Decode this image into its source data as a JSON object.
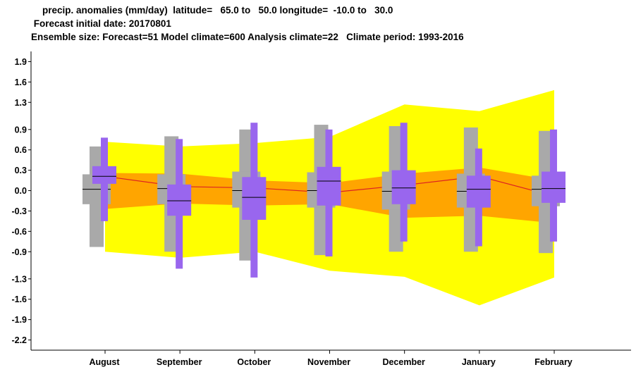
{
  "header": {
    "line1": "precip. anomalies (mm/day)  latitude=   65.0 to   50.0 longitude=  -10.0 to   30.0",
    "line2": " Forecast initial date: 20170801",
    "line3": "Ensemble size: Forecast=51 Model climate=600 Analysis climate=22   Climate period: 1993-2016"
  },
  "colors": {
    "plume_outer": "#ffff00",
    "plume_inner": "#ffa500",
    "climate_box": "#a9a9a9",
    "forecast_box": "#9966ee",
    "mean_line": "#dd2222",
    "median": "#000000"
  },
  "chart_data": {
    "type": "box",
    "ylim": [
      -2.35,
      2.05
    ],
    "yticks": [
      "1.9",
      "1.6",
      "1.3",
      "0.9",
      "0.6",
      "0.3",
      "0.0",
      "-0.3",
      "-0.6",
      "-0.9",
      "-1.3",
      "-1.6",
      "-1.9",
      "-2.2"
    ],
    "ytick_values": [
      1.9,
      1.6,
      1.3,
      0.9,
      0.6,
      0.3,
      0.0,
      -0.3,
      -0.6,
      -0.9,
      -1.3,
      -1.6,
      -1.9,
      -2.2
    ],
    "categories": [
      "August",
      "September",
      "October",
      "November",
      "December",
      "January",
      "February"
    ],
    "climate_band_outer": {
      "upper": [
        0.72,
        0.65,
        0.7,
        0.79,
        1.27,
        1.17,
        1.48
      ],
      "lower": [
        -0.9,
        -0.99,
        -0.9,
        -1.18,
        -1.27,
        -1.69,
        -1.28
      ]
    },
    "climate_band_inner": {
      "upper": [
        0.26,
        0.25,
        0.15,
        0.11,
        0.25,
        0.34,
        0.15
      ],
      "lower": [
        -0.27,
        -0.19,
        -0.22,
        -0.2,
        -0.4,
        -0.37,
        -0.48
      ]
    },
    "ensemble_mean": [
      0.21,
      0.06,
      0.04,
      -0.03,
      0.08,
      0.21,
      -0.08
    ],
    "model_climate": [
      {
        "min": -0.83,
        "p10": -0.2,
        "p25": -0.16,
        "median": 0.02,
        "p75": 0.18,
        "p90": 0.24,
        "max": 0.65
      },
      {
        "min": -0.9,
        "p10": -0.2,
        "p25": -0.14,
        "median": 0.03,
        "p75": 0.17,
        "p90": 0.24,
        "max": 0.8
      },
      {
        "min": -1.03,
        "p10": -0.25,
        "p25": -0.17,
        "median": 0.0,
        "p75": 0.2,
        "p90": 0.28,
        "max": 0.9
      },
      {
        "min": -0.95,
        "p10": -0.25,
        "p25": -0.18,
        "median": 0.0,
        "p75": 0.2,
        "p90": 0.27,
        "max": 0.97
      },
      {
        "min": -0.9,
        "p10": -0.28,
        "p25": -0.2,
        "median": -0.01,
        "p75": 0.2,
        "p90": 0.28,
        "max": 0.95
      },
      {
        "min": -0.9,
        "p10": -0.25,
        "p25": -0.18,
        "median": -0.01,
        "p75": 0.18,
        "p90": 0.25,
        "max": 0.93
      },
      {
        "min": -0.92,
        "p10": -0.23,
        "p25": -0.16,
        "median": 0.02,
        "p75": 0.16,
        "p90": 0.22,
        "max": 0.88
      }
    ],
    "forecast": [
      {
        "min": -0.45,
        "p10": 0.1,
        "p25": 0.14,
        "median": 0.21,
        "p75": 0.33,
        "p90": 0.36,
        "max": 0.78
      },
      {
        "min": -1.15,
        "p10": -0.37,
        "p25": -0.3,
        "median": -0.15,
        "p75": 0.03,
        "p90": 0.09,
        "max": 0.76
      },
      {
        "min": -1.28,
        "p10": -0.43,
        "p25": -0.35,
        "median": -0.1,
        "p75": 0.15,
        "p90": 0.2,
        "max": 1.0
      },
      {
        "min": -0.97,
        "p10": -0.22,
        "p25": -0.14,
        "median": 0.14,
        "p75": 0.3,
        "p90": 0.35,
        "max": 0.9
      },
      {
        "min": -0.75,
        "p10": -0.2,
        "p25": -0.13,
        "median": 0.04,
        "p75": 0.24,
        "p90": 0.3,
        "max": 1.0
      },
      {
        "min": -0.82,
        "p10": -0.25,
        "p25": -0.18,
        "median": 0.02,
        "p75": 0.14,
        "p90": 0.22,
        "max": 0.62
      },
      {
        "min": -0.75,
        "p10": -0.18,
        "p25": -0.12,
        "median": 0.03,
        "p75": 0.22,
        "p90": 0.28,
        "max": 0.9
      }
    ]
  }
}
